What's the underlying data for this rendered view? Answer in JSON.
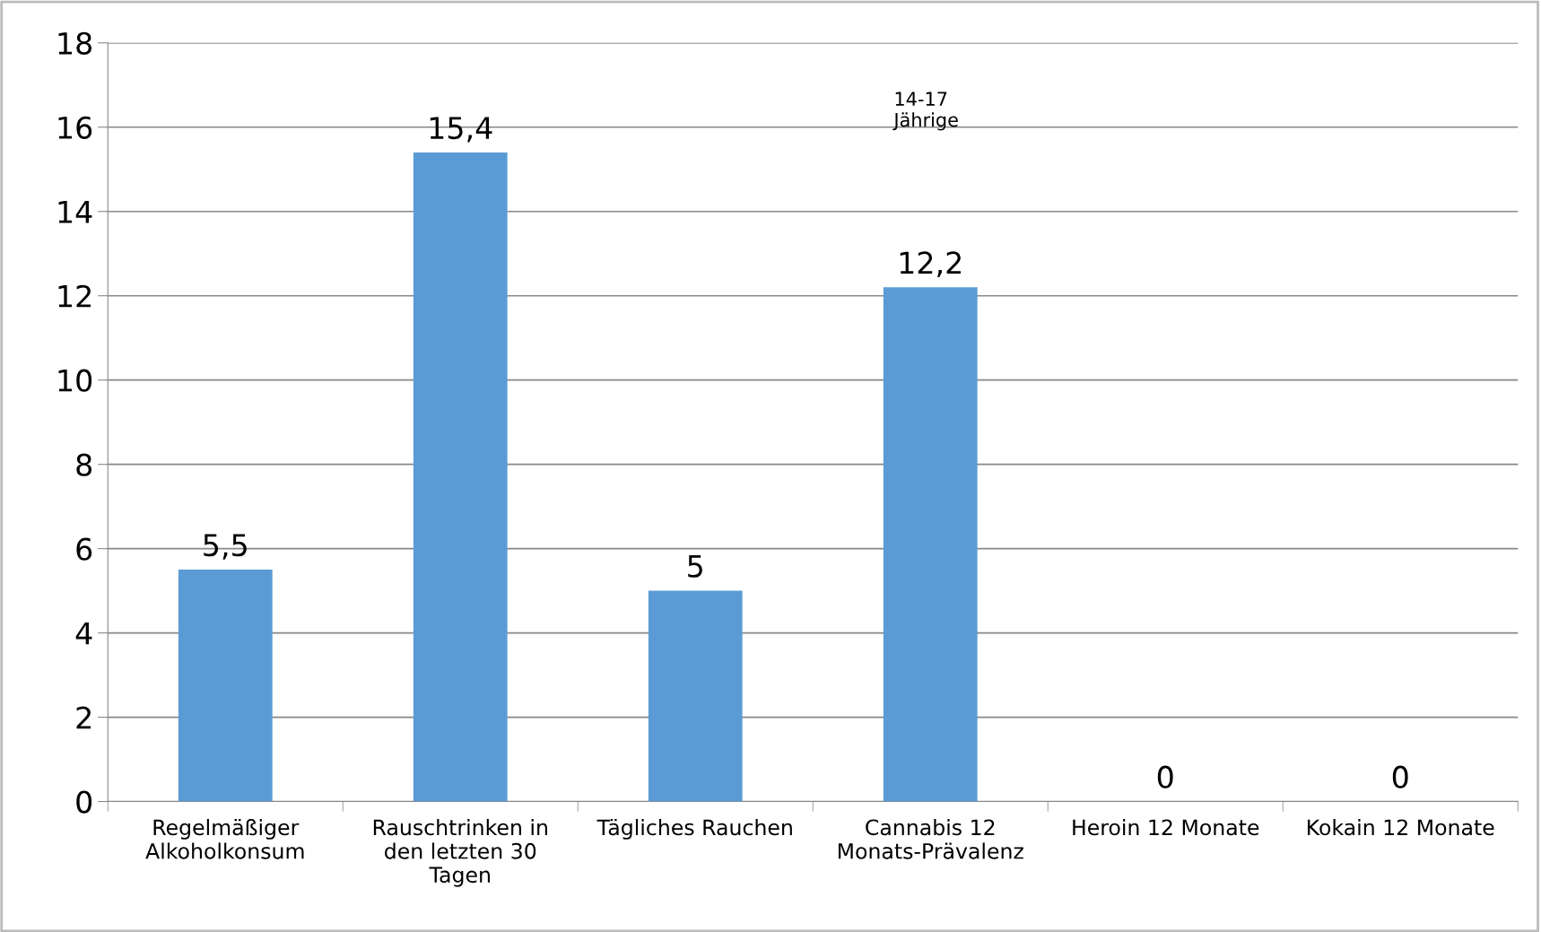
{
  "chart_data": {
    "type": "bar",
    "categories": [
      "Regelmäßiger\nAlkoholkonsum",
      "Rauschtrinken in\nden letzten 30\nTagen",
      "Tägliches Rauchen",
      "Cannabis 12\nMonats-Prävalenz",
      "Heroin 12 Monate",
      "Kokain 12 Monate"
    ],
    "values": [
      5.5,
      15.4,
      5,
      12.2,
      0,
      0
    ],
    "value_labels": [
      "5,5",
      "15,4",
      "5",
      "12,2",
      "0",
      "0"
    ],
    "color": "#5b9bd5",
    "ylim": [
      0,
      18
    ],
    "yticks": [
      0,
      2,
      4,
      6,
      8,
      10,
      12,
      14,
      16,
      18
    ],
    "grid": "y",
    "annotations": [
      "14-17\nJährige"
    ]
  }
}
